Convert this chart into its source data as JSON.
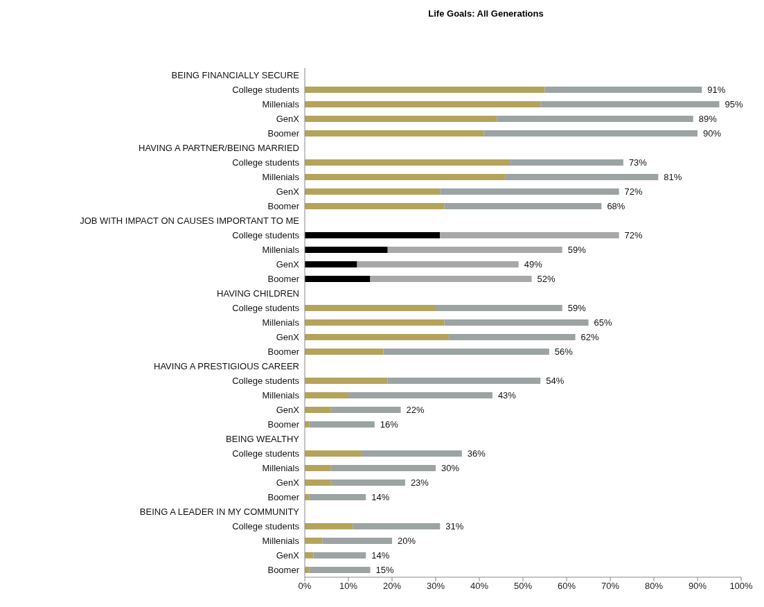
{
  "chart_data": {
    "type": "bar",
    "orientation": "horizontal",
    "stacked": true,
    "title": "Life Goals: All Generations",
    "categories": [
      "BEING FINANCIALLY SECURE",
      "College students",
      "Millenials",
      "GenX",
      "Boomer",
      "HAVING A PARTNER/BEING MARRIED",
      "College students",
      "Millenials",
      "GenX",
      "Boomer",
      "JOB WITH IMPACT ON CAUSES IMPORTANT TO ME",
      "College students",
      "Millenials",
      "GenX",
      "Boomer",
      "HAVING CHILDREN",
      "College students",
      "Millenials",
      "GenX",
      "Boomer",
      "HAVING A PRESTIGIOUS CAREER",
      "College students",
      "Millenials",
      "GenX",
      "Boomer",
      "BEING WEALTHY",
      "College students",
      "Millenials",
      "GenX",
      "Boomer",
      "BEING A LEADER IN MY COMMUNITY",
      "College students",
      "Millenials",
      "GenX",
      "Boomer"
    ],
    "series": [
      {
        "values": [
          null,
          55,
          54,
          44,
          41,
          null,
          47,
          46,
          31,
          32,
          null,
          31,
          19,
          12,
          15,
          null,
          30,
          32,
          33,
          18,
          null,
          19,
          10,
          6,
          1,
          null,
          13,
          6,
          6,
          1,
          null,
          11,
          4,
          2,
          1
        ],
        "colors": [
          null,
          "#b4a35b",
          "#b4a35b",
          "#b4a35b",
          "#b4a35b",
          null,
          "#b4a35b",
          "#b4a35b",
          "#b4a35b",
          "#b4a35b",
          null,
          "#000000",
          "#000000",
          "#000000",
          "#000000",
          null,
          "#b4a35b",
          "#b4a35b",
          "#b4a35b",
          "#b4a35b",
          null,
          "#b4a35b",
          "#b4a35b",
          "#b4a35b",
          "#b4a35b",
          null,
          "#b4a35b",
          "#b4a35b",
          "#b4a35b",
          "#b4a35b",
          null,
          "#b4a35b",
          "#b4a35b",
          "#b4a35b",
          "#b4a35b"
        ]
      },
      {
        "values": [
          null,
          36,
          41,
          45,
          49,
          null,
          26,
          35,
          41,
          36,
          null,
          41,
          40,
          37,
          37,
          null,
          29,
          33,
          29,
          38,
          null,
          35,
          33,
          16,
          15,
          null,
          23,
          24,
          17,
          13,
          null,
          20,
          16,
          12,
          14
        ],
        "colors": [
          null,
          "#9ba3a3",
          "#9ba3a3",
          "#9ba3a3",
          "#9ba3a3",
          null,
          "#9ba3a3",
          "#9ba3a3",
          "#9ba3a3",
          "#9ba3a3",
          null,
          "#a8a8a8",
          "#a8a8a8",
          "#a8a8a8",
          "#a8a8a8",
          null,
          "#9ba3a3",
          "#9ba3a3",
          "#9ba3a3",
          "#9ba3a3",
          null,
          "#9ba3a3",
          "#9ba3a3",
          "#9ba3a3",
          "#9ba3a3",
          null,
          "#9ba3a3",
          "#9ba3a3",
          "#9ba3a3",
          "#9ba3a3",
          null,
          "#9ba3a3",
          "#9ba3a3",
          "#9ba3a3",
          "#9ba3a3"
        ]
      }
    ],
    "totals": [
      null,
      "91%",
      "95%",
      "89%",
      "90%",
      null,
      "73%",
      "81%",
      "72%",
      "68%",
      null,
      "72%",
      "59%",
      "49%",
      "52%",
      null,
      "59%",
      "65%",
      "62%",
      "56%",
      null,
      "54%",
      "43%",
      "22%",
      "16%",
      null,
      "36%",
      "30%",
      "23%",
      "14%",
      null,
      "31%",
      "20%",
      "14%",
      "15%"
    ],
    "xlim": [
      0,
      100
    ],
    "xticks": [
      {
        "value": 0,
        "label": "0%"
      },
      {
        "value": 10,
        "label": "10%"
      },
      {
        "value": 20,
        "label": "20%"
      },
      {
        "value": 30,
        "label": "30%"
      },
      {
        "value": 40,
        "label": "40%"
      },
      {
        "value": 50,
        "label": "50%"
      },
      {
        "value": 60,
        "label": "60%"
      },
      {
        "value": 70,
        "label": "70%"
      },
      {
        "value": 80,
        "label": "80%"
      },
      {
        "value": 90,
        "label": "90%"
      },
      {
        "value": 100,
        "label": "100%"
      }
    ],
    "grid": false
  }
}
